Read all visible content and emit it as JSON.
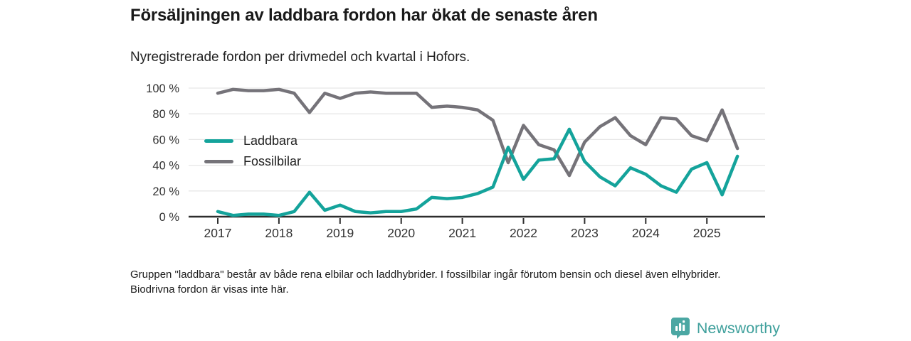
{
  "header": {
    "title": "Försäljningen av laddbara fordon har ökat de senaste åren",
    "subtitle": "Nyregistrerade fordon per drivmedel och kvartal i Hofors."
  },
  "chart_data": {
    "type": "line",
    "title": "Försäljningen av laddbara fordon har ökat de senaste åren",
    "subtitle": "Nyregistrerade fordon per drivmedel och kvartal i Hofors.",
    "xlabel": "",
    "ylabel": "",
    "ylim": [
      0,
      100
    ],
    "grid": true,
    "legend_position": "inside-left",
    "y_ticks": [
      0,
      20,
      40,
      60,
      80,
      100
    ],
    "y_tick_suffix": " %",
    "x_tick_labels": [
      "2017",
      "2018",
      "2019",
      "2020",
      "2021",
      "2022",
      "2023",
      "2024",
      "2025"
    ],
    "quarters": [
      "2017 Q1",
      "2017 Q2",
      "2017 Q3",
      "2017 Q4",
      "2018 Q1",
      "2018 Q2",
      "2018 Q3",
      "2018 Q4",
      "2019 Q1",
      "2019 Q2",
      "2019 Q3",
      "2019 Q4",
      "2020 Q1",
      "2020 Q2",
      "2020 Q3",
      "2020 Q4",
      "2021 Q1",
      "2021 Q2",
      "2021 Q3",
      "2021 Q4",
      "2022 Q1",
      "2022 Q2",
      "2022 Q3",
      "2022 Q4",
      "2023 Q1",
      "2023 Q2",
      "2023 Q3",
      "2023 Q4",
      "2024 Q1",
      "2024 Q2",
      "2024 Q3",
      "2024 Q4",
      "2025 Q1",
      "2025 Q2",
      "2025 Q3"
    ],
    "series": [
      {
        "name": "Laddbara",
        "color": "#14a39b",
        "values": [
          4,
          1,
          2,
          2,
          1,
          4,
          19,
          5,
          9,
          4,
          3,
          4,
          4,
          6,
          15,
          14,
          15,
          18,
          23,
          54,
          29,
          44,
          45,
          68,
          43,
          31,
          24,
          38,
          33,
          24,
          19,
          37,
          42,
          17,
          47
        ]
      },
      {
        "name": "Fossilbilar",
        "color": "#757379",
        "values": [
          96,
          99,
          98,
          98,
          99,
          96,
          81,
          96,
          92,
          96,
          97,
          96,
          96,
          96,
          85,
          86,
          85,
          83,
          75,
          42,
          71,
          56,
          52,
          32,
          58,
          70,
          77,
          63,
          56,
          77,
          76,
          63,
          59,
          83,
          53
        ]
      }
    ]
  },
  "footnote": {
    "text": "Gruppen \"laddbara\" består av både rena elbilar och laddhybrider. I fossilbilar ingår förutom bensin och diesel även elhybrider. Biodrivna fordon är visas inte här."
  },
  "logo": {
    "name": "Newsworthy",
    "icon": "bar-chart-badge-icon",
    "badge_color": "#4ba7a3",
    "text_color": "#3fa09c"
  }
}
